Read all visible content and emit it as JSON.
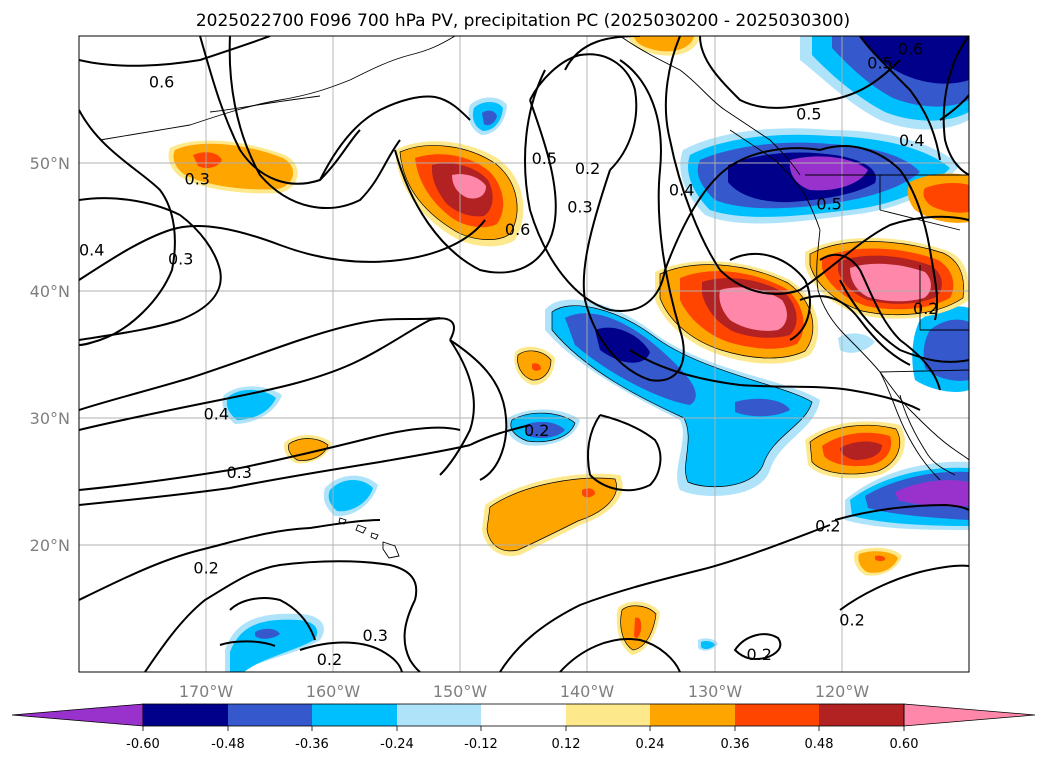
{
  "chart_data": {
    "type": "contour_map",
    "title": "2025022700 F096 700 hPa PV, precipitation PC (2025030200 - 2025030300)",
    "x_tick_labels": [
      "170°W",
      "160°W",
      "150°W",
      "140°W",
      "130°W",
      "120°W"
    ],
    "x_tick_values": [
      -170,
      -160,
      -150,
      -140,
      -130,
      -120
    ],
    "y_tick_labels": [
      "20°N",
      "30°N",
      "40°N",
      "50°N"
    ],
    "y_tick_values": [
      20,
      30,
      40,
      50
    ],
    "xlim": [
      -180,
      -110
    ],
    "ylim": [
      10,
      60
    ],
    "grid": true,
    "colorbar": {
      "ticks": [
        "-0.60",
        "-0.48",
        "-0.36",
        "-0.24",
        "-0.12",
        "0.12",
        "0.24",
        "0.36",
        "0.48",
        "0.60"
      ],
      "colors": [
        "#9932cc",
        "#00008b",
        "#3558cc",
        "#00bfff",
        "#aee3fa",
        "#ffffff",
        "#fde98c",
        "#ffa500",
        "#ff4500",
        "#b22222",
        "#ff88aa"
      ]
    },
    "contour_labels": [
      {
        "text": "0.6",
        "lon": -173.5,
        "lat": 56.1
      },
      {
        "text": "0.3",
        "lon": -170.7,
        "lat": 48.5
      },
      {
        "text": "0.3",
        "lon": -172,
        "lat": 42.2
      },
      {
        "text": "0.4",
        "lon": -179,
        "lat": 42.9
      },
      {
        "text": "0.5",
        "lon": -143.4,
        "lat": 50.1
      },
      {
        "text": "0.6",
        "lon": -145.5,
        "lat": 44.5
      },
      {
        "text": "0.2",
        "lon": -140,
        "lat": 49.3
      },
      {
        "text": "0.3",
        "lon": -140.6,
        "lat": 46.3
      },
      {
        "text": "0.4",
        "lon": -132.6,
        "lat": 47.6
      },
      {
        "text": "0.5",
        "lon": -122.6,
        "lat": 53.6
      },
      {
        "text": "0.5",
        "lon": -121,
        "lat": 46.5
      },
      {
        "text": "0.5",
        "lon": -117,
        "lat": 57.6
      },
      {
        "text": "0.6",
        "lon": -114.6,
        "lat": 58.7
      },
      {
        "text": "0.4",
        "lon": -114.5,
        "lat": 51.5
      },
      {
        "text": "0.2",
        "lon": -113.4,
        "lat": 38.3
      },
      {
        "text": "0.4",
        "lon": -169.2,
        "lat": 30
      },
      {
        "text": "0.3",
        "lon": -167.4,
        "lat": 25.4
      },
      {
        "text": "0.2",
        "lon": -144,
        "lat": 28.7
      },
      {
        "text": "0.2",
        "lon": -121.1,
        "lat": 21.2
      },
      {
        "text": "0.2",
        "lon": -170,
        "lat": 17.9
      },
      {
        "text": "0.3",
        "lon": -156.7,
        "lat": 12.6
      },
      {
        "text": "0.2",
        "lon": -160.3,
        "lat": 10.7
      },
      {
        "text": "0.2",
        "lon": -119.2,
        "lat": 13.8
      },
      {
        "text": "0.2",
        "lon": -126.5,
        "lat": 11.1
      }
    ]
  }
}
